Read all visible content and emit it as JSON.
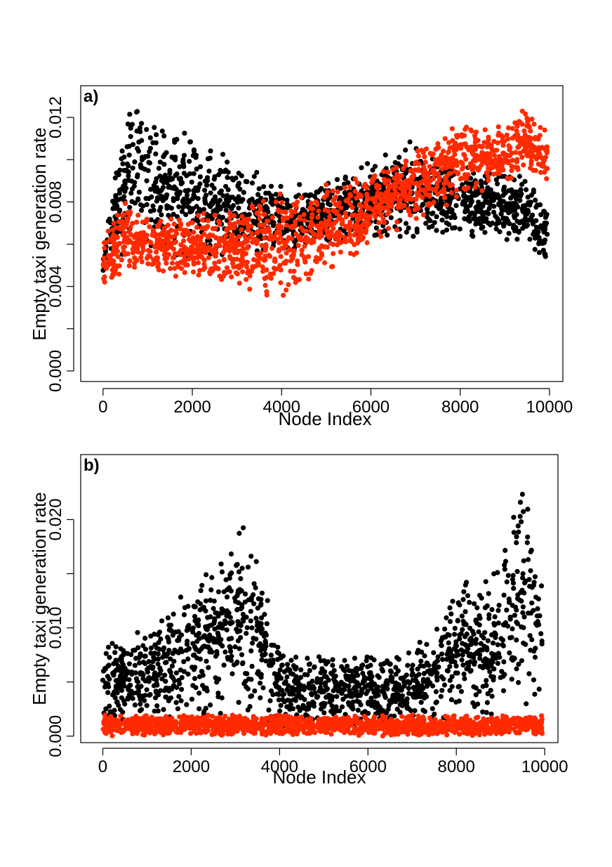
{
  "chart_data": [
    {
      "type": "scatter",
      "panel_label": "a)",
      "xlabel": "Node Index",
      "ylabel": "Empty taxi generation rate",
      "xlim": [
        -500,
        10300
      ],
      "ylim": [
        -0.0005,
        0.0135
      ],
      "x_ticks": [
        0,
        2000,
        4000,
        6000,
        8000,
        10000
      ],
      "x_tick_labels": [
        "0",
        "2000",
        "4000",
        "6000",
        "8000",
        "10000"
      ],
      "y_ticks": [
        0.0,
        0.002,
        0.004,
        0.006,
        0.008,
        0.01,
        0.012
      ],
      "y_tick_labels": [
        "0.000",
        "",
        "0.004",
        "",
        "0.008",
        "",
        "0.012"
      ],
      "grid": false,
      "series": [
        {
          "color": "#000000",
          "x": [
            0,
            500,
            1000,
            1500,
            2000,
            2500,
            3000,
            3500,
            4000,
            4500,
            5000,
            5500,
            6000,
            6500,
            7000,
            7500,
            8000,
            8500,
            9000,
            9500,
            9900
          ],
          "y_low": [
            0.0045,
            0.0052,
            0.0052,
            0.0052,
            0.0053,
            0.0053,
            0.0054,
            0.0055,
            0.0055,
            0.0057,
            0.0059,
            0.006,
            0.0061,
            0.0062,
            0.0063,
            0.0063,
            0.0063,
            0.0063,
            0.006,
            0.0058,
            0.0045
          ],
          "y_high": [
            0.006,
            0.0129,
            0.0122,
            0.0118,
            0.0112,
            0.0106,
            0.01,
            0.0096,
            0.009,
            0.0089,
            0.0091,
            0.0096,
            0.0102,
            0.0106,
            0.011,
            0.0104,
            0.0098,
            0.0096,
            0.0095,
            0.0098,
            0.0085
          ]
        },
        {
          "color": "#ff2a00",
          "x": [
            0,
            500,
            1000,
            1500,
            2000,
            2500,
            3000,
            3500,
            4000,
            4500,
            5000,
            5500,
            6000,
            6500,
            7000,
            7500,
            8000,
            8500,
            9000,
            9500,
            9900
          ],
          "y_low": [
            0.0037,
            0.0045,
            0.0045,
            0.0043,
            0.0042,
            0.0041,
            0.0039,
            0.0035,
            0.0032,
            0.0036,
            0.0044,
            0.0052,
            0.006,
            0.0064,
            0.007,
            0.0075,
            0.008,
            0.0083,
            0.0087,
            0.0093,
            0.0088
          ],
          "y_high": [
            0.0064,
            0.0083,
            0.0074,
            0.0074,
            0.0075,
            0.0077,
            0.0078,
            0.0082,
            0.0085,
            0.0087,
            0.0089,
            0.0092,
            0.0095,
            0.0098,
            0.0105,
            0.011,
            0.0119,
            0.0115,
            0.0118,
            0.0128,
            0.012
          ]
        }
      ]
    },
    {
      "type": "scatter",
      "panel_label": "b)",
      "xlabel": "Node Index",
      "ylabel": "Empty taxi generation rate",
      "xlim": [
        -500,
        10300
      ],
      "ylim": [
        -0.0006,
        0.026
      ],
      "x_ticks": [
        0,
        2000,
        4000,
        6000,
        8000,
        10000
      ],
      "x_tick_labels": [
        "0",
        "2000",
        "4000",
        "6000",
        "8000",
        "10000"
      ],
      "y_ticks": [
        0.0,
        0.005,
        0.01,
        0.015,
        0.02
      ],
      "y_tick_labels": [
        "0.000",
        "",
        "0.010",
        "",
        "0.020"
      ],
      "grid": false,
      "series": [
        {
          "color": "#000000",
          "x": [
            0,
            500,
            1000,
            1500,
            2000,
            2500,
            3000,
            3500,
            4000,
            4500,
            5000,
            5500,
            6000,
            6500,
            7000,
            7500,
            8000,
            8500,
            9000,
            9500,
            9900
          ],
          "y_low": [
            0.0004,
            0.0008,
            0.0008,
            0.001,
            0.0014,
            0.0012,
            0.001,
            0.0008,
            0.0008,
            0.0006,
            0.0006,
            0.0006,
            0.0006,
            0.0006,
            0.0006,
            0.0008,
            0.001,
            0.001,
            0.0008,
            0.0012,
            0.001
          ],
          "y_high": [
            0.0085,
            0.0098,
            0.0098,
            0.0125,
            0.0142,
            0.0175,
            0.0205,
            0.0185,
            0.009,
            0.008,
            0.008,
            0.0078,
            0.0075,
            0.0075,
            0.008,
            0.01,
            0.015,
            0.0155,
            0.018,
            0.025,
            0.018
          ]
        },
        {
          "color": "#ff2a00",
          "x": [
            0,
            500,
            1000,
            1500,
            2000,
            2500,
            3000,
            3500,
            4000,
            4500,
            5000,
            5500,
            6000,
            6500,
            7000,
            7500,
            8000,
            8500,
            9000,
            9500,
            9900
          ],
          "y_low": [
            0.0,
            0.0,
            0.0,
            0.0,
            0.0,
            0.0,
            0.0,
            0.0,
            0.0,
            0.0,
            0.0,
            0.0,
            0.0,
            0.0,
            0.0,
            0.0,
            0.0,
            0.0,
            0.0,
            0.0,
            0.0
          ],
          "y_high": [
            0.002,
            0.002,
            0.002,
            0.002,
            0.002,
            0.002,
            0.002,
            0.002,
            0.002,
            0.002,
            0.002,
            0.002,
            0.002,
            0.002,
            0.002,
            0.002,
            0.002,
            0.002,
            0.002,
            0.002,
            0.002
          ]
        }
      ]
    }
  ]
}
